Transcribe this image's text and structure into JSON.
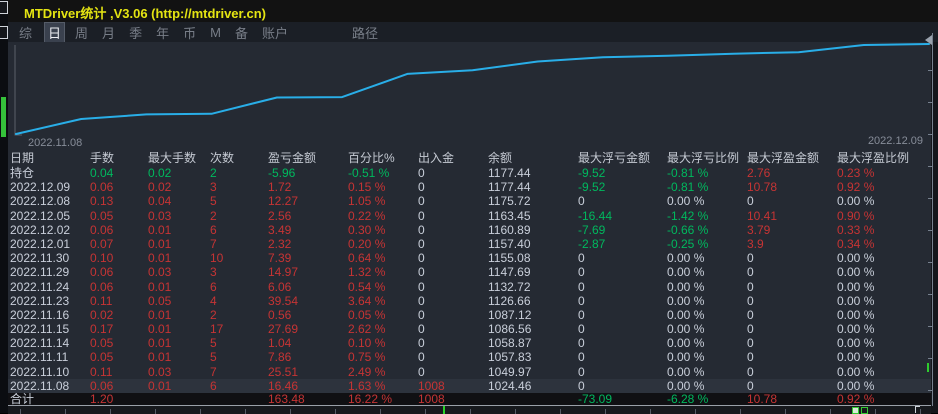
{
  "window": {
    "title": "MTDriver统计 ,V3.06 (http://mtdriver.cn)"
  },
  "menu": {
    "items": [
      {
        "label": "综",
        "active": false
      },
      {
        "label": "日",
        "active": true
      },
      {
        "label": "周",
        "active": false
      },
      {
        "label": "月",
        "active": false
      },
      {
        "label": "季",
        "active": false
      },
      {
        "label": "年",
        "active": false
      },
      {
        "label": "币",
        "active": false
      },
      {
        "label": "M",
        "active": false
      },
      {
        "label": "备",
        "active": false
      },
      {
        "label": "账户",
        "active": false
      }
    ],
    "path_label": "路径"
  },
  "chart": {
    "start_label": "2022.11.08",
    "end_label": "2022.12.09"
  },
  "chart_data": {
    "type": "line",
    "title": "账户余额曲线",
    "series_name": "余额",
    "x": [
      "2022.11.08",
      "2022.11.10",
      "2022.11.11",
      "2022.11.14",
      "2022.11.15",
      "2022.11.16",
      "2022.11.23",
      "2022.11.24",
      "2022.11.29",
      "2022.11.30",
      "2022.12.01",
      "2022.12.02",
      "2022.12.05",
      "2022.12.08",
      "2022.12.09"
    ],
    "values": [
      1024.46,
      1049.97,
      1057.83,
      1058.87,
      1086.56,
      1087.12,
      1126.66,
      1132.72,
      1147.69,
      1155.08,
      1157.4,
      1160.89,
      1163.45,
      1175.72,
      1177.44
    ],
    "ylim": [
      1024.46,
      1177.44
    ],
    "grid": false,
    "legend": false,
    "line_color": "#29aee8"
  },
  "colors": {
    "green": "#00b85e",
    "red": "#c63434",
    "text": "#c9cfda",
    "title_yellow": "#e4e412",
    "chart_line": "#29aee8",
    "background": "#252a33"
  },
  "table": {
    "columns": [
      "日期",
      "手数",
      "最大手数",
      "次数",
      "盈亏金额",
      "百分比%",
      "出入金",
      "余额",
      "最大浮亏金额",
      "最大浮亏比例",
      "最大浮盈金额",
      "最大浮盈比例"
    ],
    "rows": [
      {
        "cells": [
          "持仓",
          "0.04",
          "0.02",
          "2",
          "-5.96",
          "-0.51 %",
          "0",
          "1177.44",
          "-9.52",
          "-0.81 %",
          "2.76",
          "0.23 %"
        ],
        "colors": [
          "w",
          "g",
          "g",
          "g",
          "g",
          "g",
          "w",
          "w",
          "g",
          "g",
          "r",
          "r"
        ],
        "highlight": false,
        "total": false
      },
      {
        "cells": [
          "2022.12.09",
          "0.06",
          "0.02",
          "3",
          "1.72",
          "0.15 %",
          "0",
          "1177.44",
          "-9.52",
          "-0.81 %",
          "10.78",
          "0.92 %"
        ],
        "colors": [
          "w",
          "r",
          "r",
          "r",
          "r",
          "r",
          "w",
          "w",
          "g",
          "g",
          "r",
          "r"
        ],
        "highlight": false,
        "total": false
      },
      {
        "cells": [
          "2022.12.08",
          "0.13",
          "0.04",
          "5",
          "12.27",
          "1.05 %",
          "0",
          "1175.72",
          "0",
          "0.00 %",
          "0",
          "0.00 %"
        ],
        "colors": [
          "w",
          "r",
          "r",
          "r",
          "r",
          "r",
          "w",
          "w",
          "w",
          "w",
          "w",
          "w"
        ],
        "highlight": false,
        "total": false
      },
      {
        "cells": [
          "2022.12.05",
          "0.05",
          "0.03",
          "2",
          "2.56",
          "0.22 %",
          "0",
          "1163.45",
          "-16.44",
          "-1.42 %",
          "10.41",
          "0.90 %"
        ],
        "colors": [
          "w",
          "r",
          "r",
          "r",
          "r",
          "r",
          "w",
          "w",
          "g",
          "g",
          "r",
          "r"
        ],
        "highlight": false,
        "total": false
      },
      {
        "cells": [
          "2022.12.02",
          "0.06",
          "0.01",
          "6",
          "3.49",
          "0.30 %",
          "0",
          "1160.89",
          "-7.69",
          "-0.66 %",
          "3.79",
          "0.33 %"
        ],
        "colors": [
          "w",
          "r",
          "r",
          "r",
          "r",
          "r",
          "w",
          "w",
          "g",
          "g",
          "r",
          "r"
        ],
        "highlight": false,
        "total": false
      },
      {
        "cells": [
          "2022.12.01",
          "0.07",
          "0.01",
          "7",
          "2.32",
          "0.20 %",
          "0",
          "1157.40",
          "-2.87",
          "-0.25 %",
          "3.9",
          "0.34 %"
        ],
        "colors": [
          "w",
          "r",
          "r",
          "r",
          "r",
          "r",
          "w",
          "w",
          "g",
          "g",
          "r",
          "r"
        ],
        "highlight": false,
        "total": false
      },
      {
        "cells": [
          "2022.11.30",
          "0.10",
          "0.01",
          "10",
          "7.39",
          "0.64 %",
          "0",
          "1155.08",
          "0",
          "0.00 %",
          "0",
          "0.00 %"
        ],
        "colors": [
          "w",
          "r",
          "r",
          "r",
          "r",
          "r",
          "w",
          "w",
          "w",
          "w",
          "w",
          "w"
        ],
        "highlight": false,
        "total": false
      },
      {
        "cells": [
          "2022.11.29",
          "0.06",
          "0.03",
          "3",
          "14.97",
          "1.32 %",
          "0",
          "1147.69",
          "0",
          "0.00 %",
          "0",
          "0.00 %"
        ],
        "colors": [
          "w",
          "r",
          "r",
          "r",
          "r",
          "r",
          "w",
          "w",
          "w",
          "w",
          "w",
          "w"
        ],
        "highlight": false,
        "total": false
      },
      {
        "cells": [
          "2022.11.24",
          "0.06",
          "0.01",
          "6",
          "6.06",
          "0.54 %",
          "0",
          "1132.72",
          "0",
          "0.00 %",
          "0",
          "0.00 %"
        ],
        "colors": [
          "w",
          "r",
          "r",
          "r",
          "r",
          "r",
          "w",
          "w",
          "w",
          "w",
          "w",
          "w"
        ],
        "highlight": false,
        "total": false
      },
      {
        "cells": [
          "2022.11.23",
          "0.11",
          "0.05",
          "4",
          "39.54",
          "3.64 %",
          "0",
          "1126.66",
          "0",
          "0.00 %",
          "0",
          "0.00 %"
        ],
        "colors": [
          "w",
          "r",
          "r",
          "r",
          "r",
          "r",
          "w",
          "w",
          "w",
          "w",
          "w",
          "w"
        ],
        "highlight": false,
        "total": false
      },
      {
        "cells": [
          "2022.11.16",
          "0.02",
          "0.01",
          "2",
          "0.56",
          "0.05 %",
          "0",
          "1087.12",
          "0",
          "0.00 %",
          "0",
          "0.00 %"
        ],
        "colors": [
          "w",
          "r",
          "r",
          "r",
          "r",
          "r",
          "w",
          "w",
          "w",
          "w",
          "w",
          "w"
        ],
        "highlight": false,
        "total": false
      },
      {
        "cells": [
          "2022.11.15",
          "0.17",
          "0.01",
          "17",
          "27.69",
          "2.62 %",
          "0",
          "1086.56",
          "0",
          "0.00 %",
          "0",
          "0.00 %"
        ],
        "colors": [
          "w",
          "r",
          "r",
          "r",
          "r",
          "r",
          "w",
          "w",
          "w",
          "w",
          "w",
          "w"
        ],
        "highlight": false,
        "total": false
      },
      {
        "cells": [
          "2022.11.14",
          "0.05",
          "0.01",
          "5",
          "1.04",
          "0.10 %",
          "0",
          "1058.87",
          "0",
          "0.00 %",
          "0",
          "0.00 %"
        ],
        "colors": [
          "w",
          "r",
          "r",
          "r",
          "r",
          "r",
          "w",
          "w",
          "w",
          "w",
          "w",
          "w"
        ],
        "highlight": false,
        "total": false
      },
      {
        "cells": [
          "2022.11.11",
          "0.05",
          "0.01",
          "5",
          "7.86",
          "0.75 %",
          "0",
          "1057.83",
          "0",
          "0.00 %",
          "0",
          "0.00 %"
        ],
        "colors": [
          "w",
          "r",
          "r",
          "r",
          "r",
          "r",
          "w",
          "w",
          "w",
          "w",
          "w",
          "w"
        ],
        "highlight": false,
        "total": false
      },
      {
        "cells": [
          "2022.11.10",
          "0.11",
          "0.03",
          "7",
          "25.51",
          "2.49 %",
          "0",
          "1049.97",
          "0",
          "0.00 %",
          "0",
          "0.00 %"
        ],
        "colors": [
          "w",
          "r",
          "r",
          "r",
          "r",
          "r",
          "w",
          "w",
          "w",
          "w",
          "w",
          "w"
        ],
        "highlight": false,
        "total": false
      },
      {
        "cells": [
          "2022.11.08",
          "0.06",
          "0.01",
          "6",
          "16.46",
          "1.63 %",
          "1008",
          "1024.46",
          "0",
          "0.00 %",
          "0",
          "0.00 %"
        ],
        "colors": [
          "w",
          "r",
          "r",
          "r",
          "r",
          "r",
          "r",
          "w",
          "w",
          "w",
          "w",
          "w"
        ],
        "highlight": true,
        "total": false
      },
      {
        "cells": [
          "合计",
          "1.20",
          "",
          "",
          "163.48",
          "16.22 %",
          "1008",
          "",
          "-73.09",
          "-6.28 %",
          "10.78",
          "0.92 %"
        ],
        "colors": [
          "w",
          "r",
          "w",
          "w",
          "r",
          "r",
          "r",
          "w",
          "g",
          "g",
          "r",
          "r"
        ],
        "highlight": false,
        "total": true
      }
    ]
  }
}
